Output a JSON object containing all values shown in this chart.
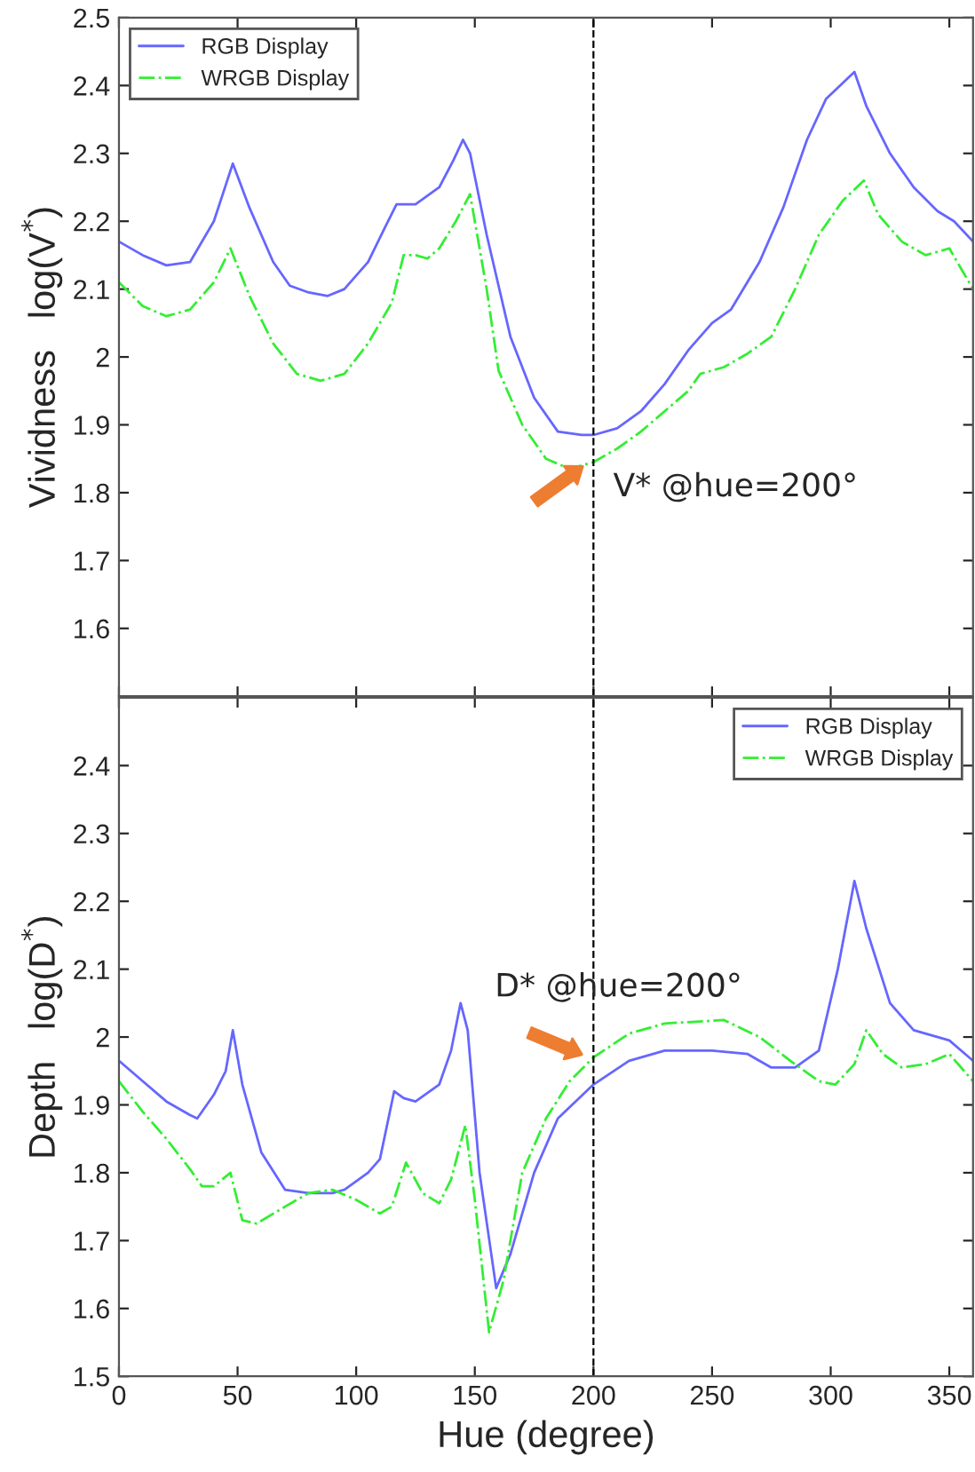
{
  "chart_data": [
    {
      "type": "line",
      "ylabel": "Vividness   log(V$^{*}$)",
      "xlim": [
        0,
        360
      ],
      "xticks": [
        0,
        50,
        100,
        150,
        200,
        250,
        300,
        350
      ],
      "ylim": [
        1.5,
        2.5
      ],
      "yticks": [
        1.6,
        1.7,
        1.8,
        1.9,
        2,
        2.1,
        2.2,
        2.3,
        2.4,
        2.5
      ],
      "tick_labels": "y",
      "grid": false,
      "legend": "top left",
      "series": [
        {
          "name": "RGB Display",
          "color": "#6666ff",
          "line_style": "solid",
          "x": [
            0,
            10,
            20,
            30,
            40,
            48,
            55,
            65,
            72,
            80,
            88,
            95,
            105,
            112,
            117,
            125,
            135,
            141,
            145,
            148,
            155,
            165,
            175,
            185,
            195,
            200,
            210,
            220,
            230,
            240,
            250,
            258,
            270,
            280,
            290,
            298,
            310,
            315,
            325,
            335,
            345,
            352,
            360
          ],
          "values": [
            2.17,
            2.15,
            2.135,
            2.14,
            2.2,
            2.285,
            2.22,
            2.14,
            2.105,
            2.095,
            2.09,
            2.1,
            2.14,
            2.19,
            2.225,
            2.225,
            2.25,
            2.29,
            2.32,
            2.3,
            2.18,
            2.03,
            1.94,
            1.89,
            1.885,
            1.885,
            1.895,
            1.92,
            1.96,
            2.01,
            2.05,
            2.07,
            2.14,
            2.22,
            2.32,
            2.38,
            2.42,
            2.37,
            2.3,
            2.25,
            2.215,
            2.2,
            2.17
          ]
        },
        {
          "name": "WRGB Display",
          "color": "#33ee33",
          "line_style": "dashdot",
          "x": [
            0,
            10,
            20,
            30,
            40,
            47,
            55,
            65,
            75,
            85,
            95,
            105,
            115,
            120,
            125,
            130,
            135,
            142,
            148,
            155,
            160,
            170,
            180,
            190,
            200,
            210,
            220,
            230,
            240,
            245,
            255,
            265,
            275,
            285,
            295,
            305,
            314,
            320,
            330,
            340,
            350,
            355,
            360
          ],
          "values": [
            2.11,
            2.075,
            2.06,
            2.07,
            2.11,
            2.16,
            2.09,
            2.02,
            1.975,
            1.965,
            1.975,
            2.02,
            2.08,
            2.15,
            2.15,
            2.145,
            2.16,
            2.2,
            2.24,
            2.1,
            1.98,
            1.9,
            1.85,
            1.835,
            1.845,
            1.865,
            1.89,
            1.92,
            1.95,
            1.975,
            1.985,
            2.005,
            2.03,
            2.1,
            2.18,
            2.23,
            2.26,
            2.21,
            2.17,
            2.15,
            2.16,
            2.13,
            2.1
          ]
        }
      ],
      "ref_lines": [
        {
          "axis": "x",
          "value": 200,
          "color": "#000000",
          "line_style": "dashed"
        }
      ],
      "annotations": [
        {
          "text": "V* @hue=200°",
          "x": 200,
          "y": 1.845
        }
      ]
    },
    {
      "type": "line",
      "xlabel": "Hue (degree)",
      "ylabel": "Depth   log(D$^{*}$)",
      "xlim": [
        0,
        360
      ],
      "xticks": [
        0,
        50,
        100,
        150,
        200,
        250,
        300,
        350
      ],
      "ylim": [
        1.5,
        2.5
      ],
      "yticks": [
        1.5,
        1.6,
        1.7,
        1.8,
        1.9,
        2,
        2.1,
        2.2,
        2.3,
        2.4
      ],
      "grid": false,
      "legend": "top right",
      "series": [
        {
          "name": "RGB Display",
          "color": "#6666ff",
          "line_style": "solid",
          "x": [
            0,
            10,
            20,
            30,
            33,
            40,
            45,
            48,
            52,
            60,
            70,
            80,
            90,
            95,
            105,
            110,
            116,
            120,
            125,
            135,
            140,
            144,
            147,
            152,
            159,
            165,
            175,
            185,
            200,
            215,
            230,
            250,
            265,
            275,
            285,
            295,
            303,
            310,
            315,
            325,
            335,
            350,
            360
          ],
          "values": [
            1.965,
            1.935,
            1.905,
            1.885,
            1.88,
            1.915,
            1.95,
            2.01,
            1.93,
            1.83,
            1.775,
            1.77,
            1.77,
            1.775,
            1.8,
            1.82,
            1.92,
            1.91,
            1.905,
            1.93,
            1.98,
            2.05,
            2.01,
            1.8,
            1.63,
            1.68,
            1.8,
            1.88,
            1.93,
            1.965,
            1.98,
            1.98,
            1.975,
            1.955,
            1.955,
            1.98,
            2.1,
            2.23,
            2.16,
            2.05,
            2.01,
            1.995,
            1.965
          ]
        },
        {
          "name": "WRGB Display",
          "color": "#33ee33",
          "line_style": "dashdot",
          "x": [
            0,
            10,
            20,
            30,
            35,
            40,
            47,
            52,
            58,
            70,
            80,
            90,
            100,
            110,
            115,
            121,
            128,
            135,
            140,
            146,
            150,
            156,
            162,
            170,
            180,
            190,
            200,
            215,
            230,
            255,
            270,
            283,
            295,
            302,
            310,
            315,
            322,
            330,
            340,
            350,
            360
          ],
          "values": [
            1.935,
            1.89,
            1.85,
            1.805,
            1.78,
            1.78,
            1.8,
            1.73,
            1.725,
            1.75,
            1.77,
            1.775,
            1.76,
            1.74,
            1.75,
            1.815,
            1.77,
            1.755,
            1.79,
            1.87,
            1.76,
            1.565,
            1.64,
            1.8,
            1.88,
            1.935,
            1.97,
            2.005,
            2.02,
            2.025,
            2.0,
            1.965,
            1.935,
            1.93,
            1.96,
            2.01,
            1.975,
            1.955,
            1.96,
            1.975,
            1.935
          ]
        }
      ],
      "ref_lines": [
        {
          "axis": "x",
          "value": 200,
          "color": "#000000",
          "line_style": "dashed"
        }
      ],
      "annotations": [
        {
          "text": "D* @hue=200°",
          "x": 200,
          "y": 1.97
        }
      ]
    }
  ]
}
